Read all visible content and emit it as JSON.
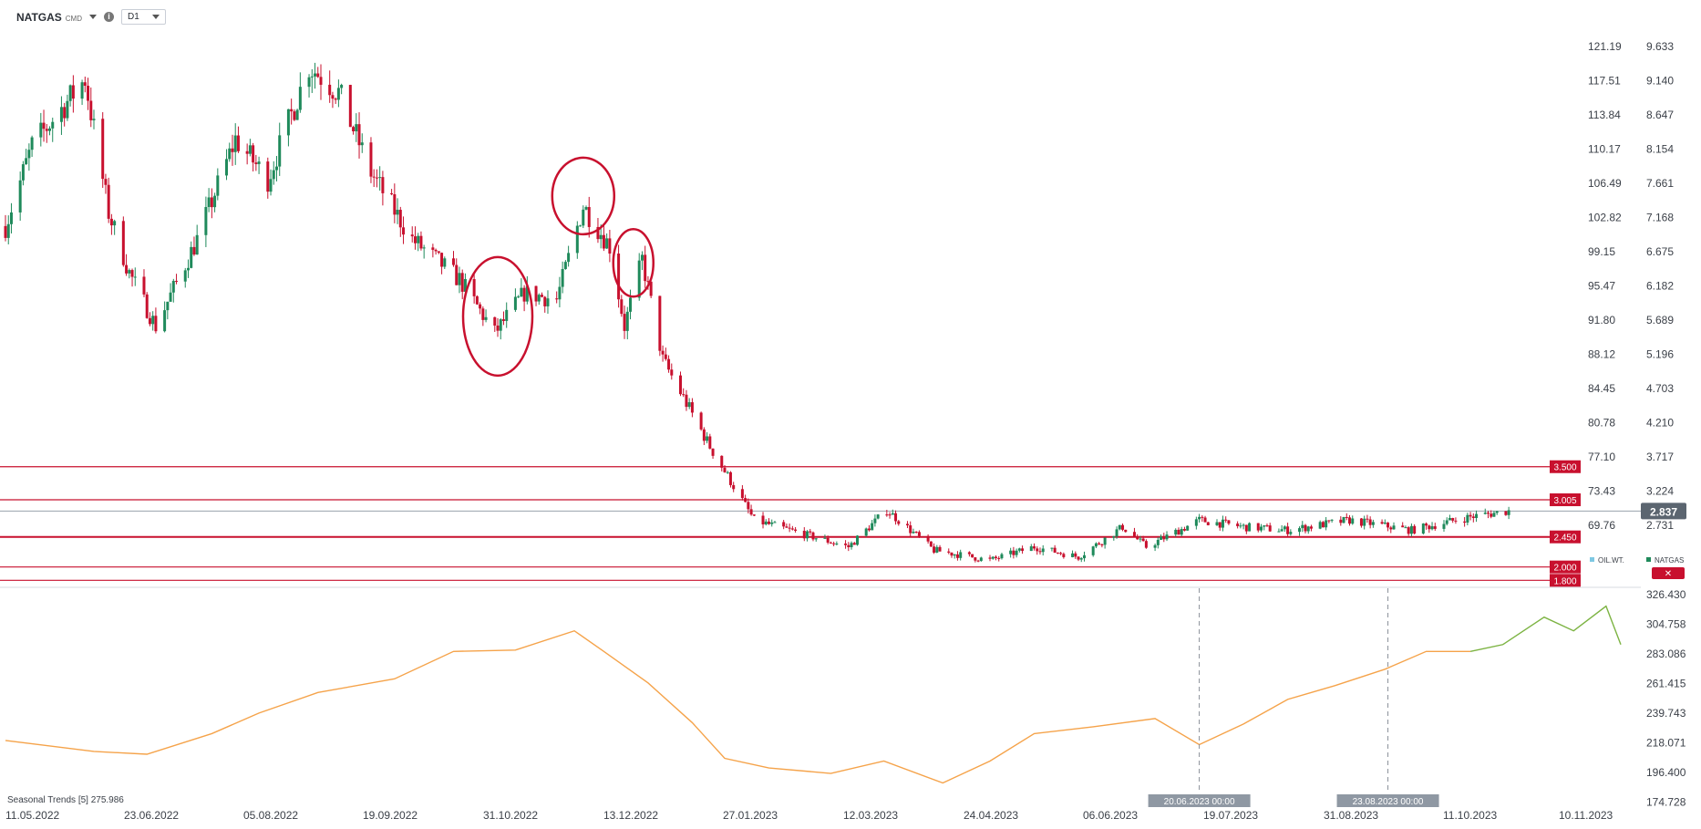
{
  "toolbar": {
    "symbol": "NATGAS",
    "symbol_suffix": "CMD",
    "timeframe": "D1"
  },
  "x_axis": {
    "labels": [
      "11.05.2022",
      "23.06.2022",
      "05.08.2022",
      "19.09.2022",
      "31.10.2022",
      "13.12.2022",
      "27.01.2023",
      "12.03.2023",
      "24.04.2023",
      "06.06.2023",
      "19.07.2023",
      "31.08.2023",
      "11.10.2023",
      "10.11.2023"
    ]
  },
  "y_axis_left": [
    "121.19",
    "117.51",
    "113.84",
    "110.17",
    "106.49",
    "102.82",
    "99.15",
    "95.47",
    "91.80",
    "88.12",
    "84.45",
    "80.78",
    "77.10",
    "73.43",
    "69.76"
  ],
  "y_axis_right": [
    "9.633",
    "9.140",
    "8.647",
    "8.154",
    "7.661",
    "7.168",
    "6.675",
    "6.182",
    "5.689",
    "5.196",
    "4.703",
    "4.210",
    "3.717",
    "3.224",
    "2.731"
  ],
  "lower_axis": [
    "326.430",
    "304.758",
    "283.086",
    "261.415",
    "239.743",
    "218.071",
    "196.400",
    "174.728"
  ],
  "levels": [
    {
      "label": "3.500",
      "value": 3.5
    },
    {
      "label": "3.005",
      "value": 3.005
    },
    {
      "label": "2.450",
      "value": 2.45
    },
    {
      "label": "2.000",
      "value": 2.0
    },
    {
      "label": "1.800",
      "value": 1.8
    }
  ],
  "current_price": "2.837",
  "crosshair_dates": [
    "20.06.2023 00:00",
    "23.08.2023 00:00"
  ],
  "legend": {
    "item1": "OIL.WT.",
    "item2": "NATGAS"
  },
  "indicator": {
    "name": "Seasonal Trends",
    "param": "[5]",
    "value": "275.986"
  },
  "colors": {
    "up": "#1f8a5b",
    "down": "#c8102e",
    "level": "#c8102e",
    "seasonal": "#f5a34a",
    "forecast": "#7cb342",
    "circle": "#c8102e"
  },
  "chart_data": [
    {
      "type": "candlestick",
      "title": "NATGAS CMD D1",
      "x_range": [
        "2022-05-11",
        "2023-11-10"
      ],
      "ylim": [
        1.75,
        9.8
      ],
      "waypoints": [
        {
          "t": "2022-05-11",
          "v": 7.1
        },
        {
          "t": "2022-05-20",
          "v": 8.3
        },
        {
          "t": "2022-06-07",
          "v": 9.3
        },
        {
          "t": "2022-06-15",
          "v": 7.3
        },
        {
          "t": "2022-06-22",
          "v": 6.4
        },
        {
          "t": "2022-07-01",
          "v": 5.6
        },
        {
          "t": "2022-07-15",
          "v": 6.9
        },
        {
          "t": "2022-07-28",
          "v": 8.4
        },
        {
          "t": "2022-08-08",
          "v": 7.8
        },
        {
          "t": "2022-08-22",
          "v": 9.5
        },
        {
          "t": "2022-09-01",
          "v": 9.1
        },
        {
          "t": "2022-09-12",
          "v": 7.9
        },
        {
          "t": "2022-09-26",
          "v": 6.9
        },
        {
          "t": "2022-10-12",
          "v": 6.3
        },
        {
          "t": "2022-10-24",
          "v": 5.5
        },
        {
          "t": "2022-11-03",
          "v": 6.1
        },
        {
          "t": "2022-11-14",
          "v": 6.0
        },
        {
          "t": "2022-11-23",
          "v": 7.4
        },
        {
          "t": "2022-12-02",
          "v": 6.8
        },
        {
          "t": "2022-12-07",
          "v": 5.6
        },
        {
          "t": "2022-12-13",
          "v": 6.6
        },
        {
          "t": "2022-12-20",
          "v": 5.1
        },
        {
          "t": "2023-01-05",
          "v": 3.8
        },
        {
          "t": "2023-01-20",
          "v": 2.7
        },
        {
          "t": "2023-02-21",
          "v": 2.3
        },
        {
          "t": "2023-03-06",
          "v": 2.85
        },
        {
          "t": "2023-03-22",
          "v": 2.25
        },
        {
          "t": "2023-04-10",
          "v": 2.1
        },
        {
          "t": "2023-04-25",
          "v": 2.3
        },
        {
          "t": "2023-05-10",
          "v": 2.15
        },
        {
          "t": "2023-05-25",
          "v": 2.6
        },
        {
          "t": "2023-06-02",
          "v": 2.3
        },
        {
          "t": "2023-06-20",
          "v": 2.7
        },
        {
          "t": "2023-07-05",
          "v": 2.6
        },
        {
          "t": "2023-07-20",
          "v": 2.55
        },
        {
          "t": "2023-08-10",
          "v": 2.7
        },
        {
          "t": "2023-08-31",
          "v": 2.55
        },
        {
          "t": "2023-09-20",
          "v": 2.75
        },
        {
          "t": "2023-10-03",
          "v": 2.84
        }
      ]
    },
    {
      "type": "line",
      "name": "Seasonal Trends",
      "ylim": [
        174.728,
        326.43
      ],
      "series": [
        {
          "name": "history",
          "x": [
            "2022-05-11",
            "2022-06-10",
            "2022-06-28",
            "2022-07-20",
            "2022-08-05",
            "2022-08-25",
            "2022-09-20",
            "2022-10-10",
            "2022-10-31",
            "2022-11-20",
            "2022-11-30",
            "2022-12-15",
            "2022-12-30",
            "2023-01-10",
            "2023-01-25",
            "2023-02-15",
            "2023-03-05",
            "2023-03-25",
            "2023-04-10",
            "2023-04-25",
            "2023-05-15",
            "2023-06-05",
            "2023-06-20",
            "2023-07-05",
            "2023-07-20",
            "2023-08-05",
            "2023-08-22",
            "2023-09-05",
            "2023-09-20"
          ],
          "values": [
            220,
            212,
            210,
            225,
            240,
            255,
            265,
            285,
            286,
            300,
            285,
            262,
            233,
            207,
            200,
            196,
            205,
            189,
            205,
            225,
            230,
            236,
            217,
            232,
            250,
            260,
            272,
            285,
            285
          ]
        },
        {
          "name": "forecast",
          "x": [
            "2023-09-20",
            "2023-10-01",
            "2023-10-15",
            "2023-10-25",
            "2023-11-05",
            "2023-11-10"
          ],
          "values": [
            285,
            290,
            310,
            300,
            318,
            290
          ]
        }
      ]
    }
  ]
}
